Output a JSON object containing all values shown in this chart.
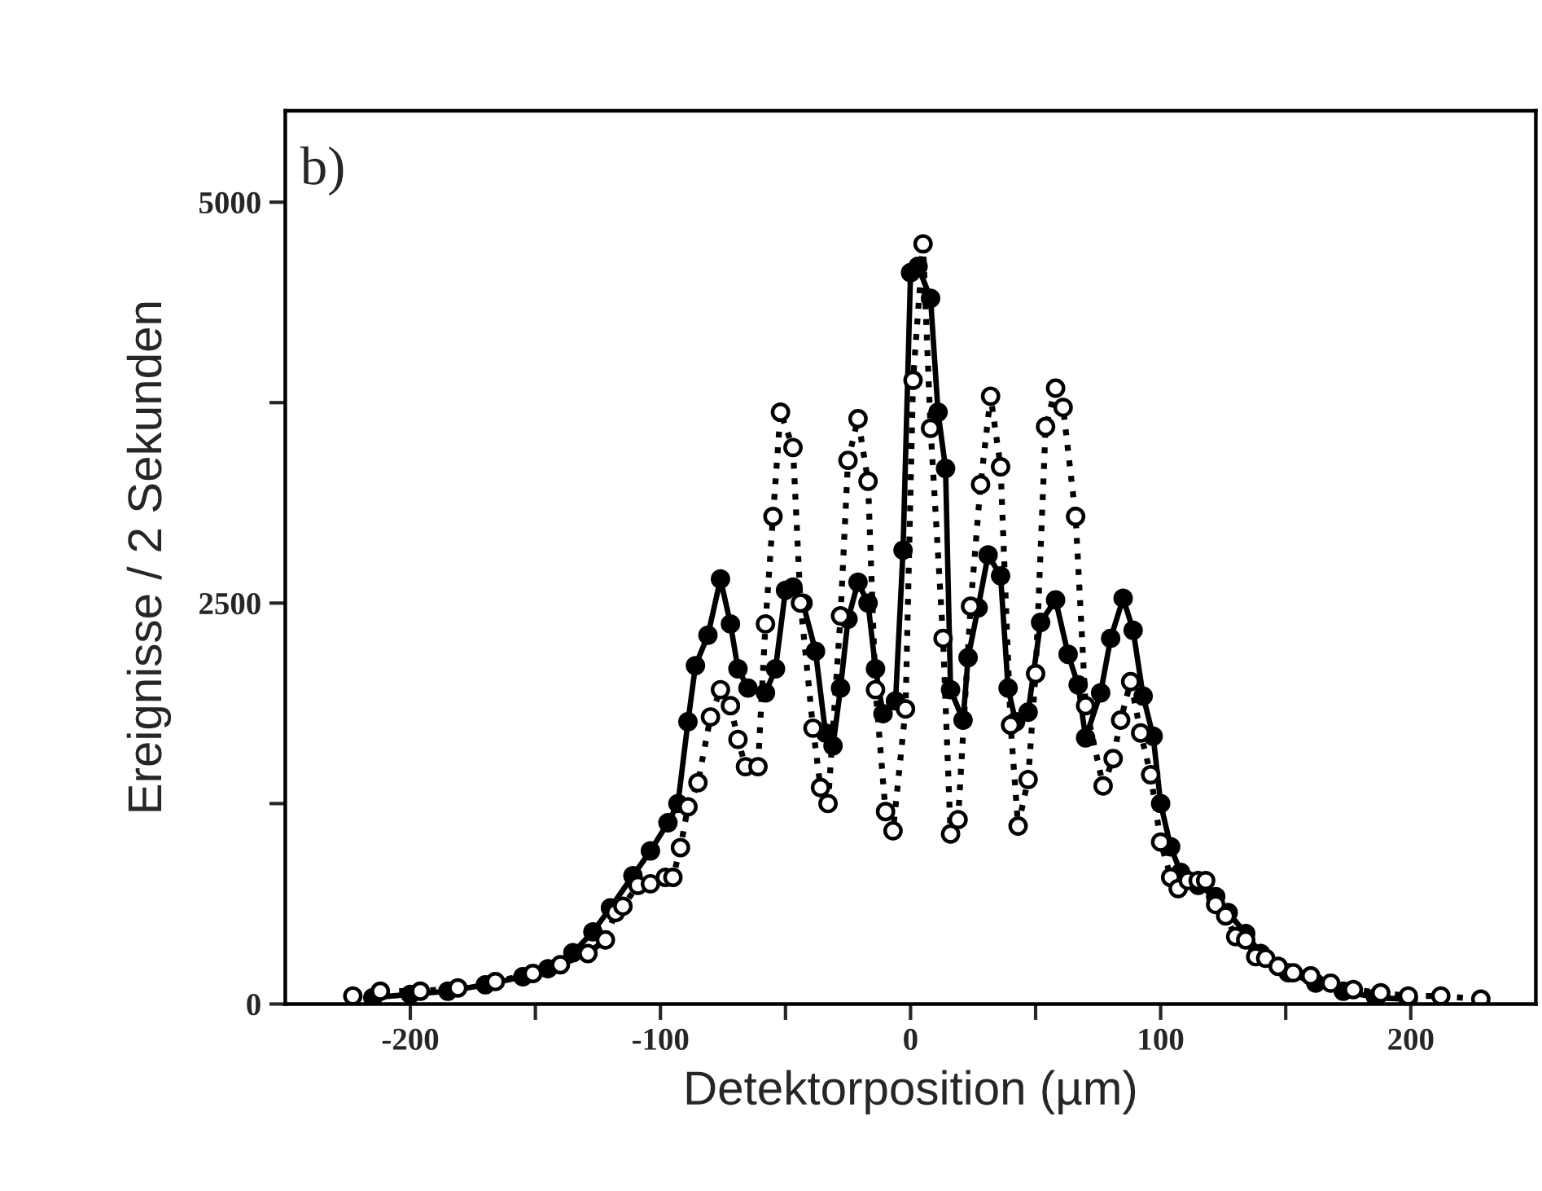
{
  "chart_data": {
    "type": "line",
    "xlabel": "Detektorposition (µm)",
    "ylabel": "Ereignisse / 2 Sekunden",
    "annotations": [
      "b)"
    ],
    "xlim": [
      -250,
      250
    ],
    "ylim": [
      0,
      5570
    ],
    "xticks": [
      -200,
      {
        "value": -150,
        "label": null
      },
      -100,
      {
        "value": -50,
        "label": null
      },
      0,
      {
        "value": 50,
        "label": null
      },
      100,
      {
        "value": 150,
        "label": null
      },
      200
    ],
    "yticks": [
      0,
      {
        "value": 1250,
        "label": null
      },
      2500,
      {
        "value": 3750,
        "label": null
      },
      5000
    ],
    "grid": false,
    "legend": false,
    "marker": "circle",
    "series": [
      {
        "color": "#000000",
        "line_style": "solid",
        "x": [
          -215,
          -200,
          -185,
          -170,
          -155,
          -145,
          -135,
          -127,
          -120,
          -111,
          -104,
          -97,
          -93,
          -89,
          -86,
          -81,
          -76,
          -72,
          -69,
          -65,
          -58,
          -54,
          -50,
          -47,
          -43,
          -38,
          -34,
          -31,
          -28,
          -25,
          -21,
          -17,
          -14,
          -11,
          -6,
          -3,
          0,
          3,
          8,
          11,
          14,
          16,
          21,
          23,
          27,
          31,
          36,
          39,
          42,
          47,
          52,
          58,
          63,
          67,
          70,
          76,
          80,
          85,
          89,
          93,
          97,
          100,
          104,
          108,
          115,
          122,
          127,
          134,
          140,
          151,
          162,
          173,
          186,
          199
        ],
        "values": [
          40,
          60,
          80,
          120,
          170,
          220,
          320,
          450,
          600,
          800,
          955,
          1130,
          1250,
          1760,
          2110,
          2300,
          2650,
          2370,
          2090,
          1970,
          1940,
          2090,
          2580,
          2600,
          2500,
          2200,
          1690,
          1610,
          1970,
          2400,
          2630,
          2500,
          2090,
          1810,
          1890,
          2830,
          4560,
          4600,
          4400,
          3690,
          3340,
          1960,
          1770,
          2160,
          2470,
          2800,
          2670,
          1970,
          1760,
          1820,
          2380,
          2520,
          2180,
          1990,
          1660,
          1940,
          2280,
          2530,
          2330,
          1920,
          1670,
          1250,
          980,
          820,
          740,
          670,
          570,
          440,
          315,
          195,
          130,
          80,
          40,
          30
        ]
      },
      {
        "color": "#000000",
        "line_style": "dotted",
        "x": [
          -223,
          -212,
          -196,
          -181,
          -166,
          -151,
          -140,
          -129,
          -122,
          -118,
          -115,
          -109,
          -104,
          -98,
          -95,
          -92,
          -89,
          -85,
          -80,
          -76,
          -72,
          -69,
          -66,
          -61,
          -58,
          -55,
          -52,
          -47,
          -44,
          -39,
          -36,
          -33,
          -28,
          -25,
          -21,
          -17,
          -14,
          -10,
          -7,
          -2,
          1,
          5,
          8,
          13,
          16,
          19,
          24,
          28,
          32,
          36,
          40,
          43,
          47,
          50,
          54,
          58,
          61,
          66,
          70,
          77,
          81,
          84,
          88,
          92,
          96,
          100,
          104,
          107,
          111,
          115,
          118,
          122,
          126,
          130,
          134,
          138,
          142,
          147,
          153,
          160,
          168,
          177,
          188,
          199,
          212,
          228
        ],
        "values": [
          50,
          80,
          80,
          100,
          140,
          190,
          245,
          315,
          400,
          570,
          610,
          740,
          750,
          790,
          790,
          975,
          1230,
          1380,
          1790,
          1960,
          1860,
          1650,
          1480,
          1480,
          2370,
          3040,
          3690,
          3470,
          2500,
          1720,
          1350,
          1250,
          2420,
          3390,
          3650,
          3260,
          1960,
          1200,
          1080,
          1840,
          3890,
          4740,
          3590,
          2280,
          1060,
          1150,
          2480,
          3240,
          3790,
          3350,
          1740,
          1110,
          1400,
          2060,
          3600,
          3840,
          3720,
          3040,
          1860,
          1360,
          1530,
          1770,
          2010,
          1690,
          1430,
          1010,
          790,
          720,
          770,
          770,
          770,
          620,
          550,
          420,
          400,
          295,
          285,
          235,
          195,
          175,
          130,
          90,
          70,
          50,
          50,
          30
        ]
      }
    ]
  }
}
